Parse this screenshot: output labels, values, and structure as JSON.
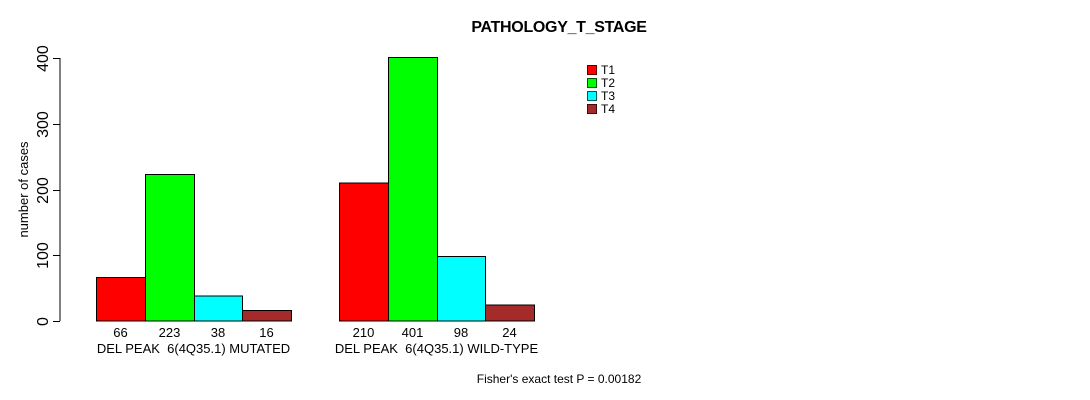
{
  "figure": {
    "background": "#ffffff",
    "text_color": "#000000"
  },
  "chart_data": {
    "type": "bar",
    "title": "PATHOLOGY_T_STAGE",
    "xlabel": "",
    "ylabel": "number of cases",
    "ylim": [
      0,
      400
    ],
    "yticks": [
      0,
      100,
      200,
      300,
      400
    ],
    "grid": false,
    "legend_position": "inside-top-right",
    "categories": [
      "DEL PEAK  6(4Q35.1) MUTATED",
      "DEL PEAK  6(4Q35.1) WILD-TYPE"
    ],
    "series": [
      {
        "name": "T1",
        "color": "#ff0000",
        "values": [
          66,
          210
        ]
      },
      {
        "name": "T2",
        "color": "#00ff00",
        "values": [
          223,
          401
        ]
      },
      {
        "name": "T3",
        "color": "#00ffff",
        "values": [
          38,
          98
        ]
      },
      {
        "name": "T4",
        "color": "#a52a2a",
        "values": [
          16,
          24
        ]
      }
    ],
    "show_bar_value_labels": true,
    "bar_value_labels": [
      [
        66,
        223,
        38,
        16
      ],
      [
        210,
        401,
        98,
        24
      ]
    ],
    "annotation": "Fisher's exact test P = 0.00182"
  }
}
